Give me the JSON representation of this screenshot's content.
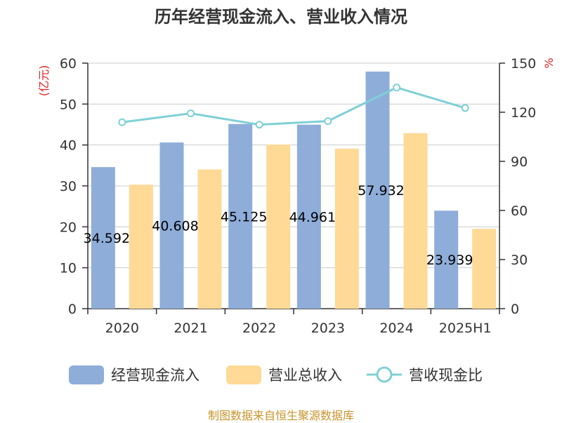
{
  "chart_data": {
    "type": "bar",
    "title": "历年经营现金流入、营业收入情况",
    "categories": [
      "2020",
      "2021",
      "2022",
      "2023",
      "2024",
      "2025H1"
    ],
    "series": [
      {
        "name": "经营现金流入",
        "axis": "left",
        "kind": "bar",
        "color": "#8eadd9",
        "values": [
          34.592,
          40.608,
          45.125,
          44.961,
          57.932,
          23.939
        ]
      },
      {
        "name": "营业总收入",
        "axis": "left",
        "kind": "bar",
        "color": "#ffd996",
        "values": [
          30.3,
          34.0,
          40.1,
          39.1,
          42.9,
          19.5
        ]
      },
      {
        "name": "营收现金比",
        "axis": "right",
        "kind": "line",
        "color": "#7fd0d6",
        "values": [
          113.9,
          119.3,
          112.4,
          114.6,
          135.1,
          122.6
        ]
      }
    ],
    "bar_labels": [
      "34.592",
      "40.608",
      "45.125",
      "44.961",
      "57.932",
      "23.939"
    ],
    "y_left": {
      "label": "(亿元)",
      "ylim": [
        0,
        60
      ],
      "ticks": [
        0,
        10,
        20,
        30,
        40,
        50,
        60
      ]
    },
    "y_right": {
      "label": "%",
      "ylim": [
        0,
        150
      ],
      "ticks": [
        0,
        30,
        60,
        90,
        120,
        150
      ]
    },
    "grid": true,
    "legend_position": "bottom"
  },
  "legend": [
    {
      "label": "经营现金流入",
      "color": "#8eadd9",
      "kind": "bar"
    },
    {
      "label": "营业总收入",
      "color": "#ffd996",
      "kind": "bar"
    },
    {
      "label": "营收现金比",
      "color": "#7fd0d6",
      "kind": "line"
    }
  ],
  "source_note": "制图数据来自恒生聚源数据库"
}
